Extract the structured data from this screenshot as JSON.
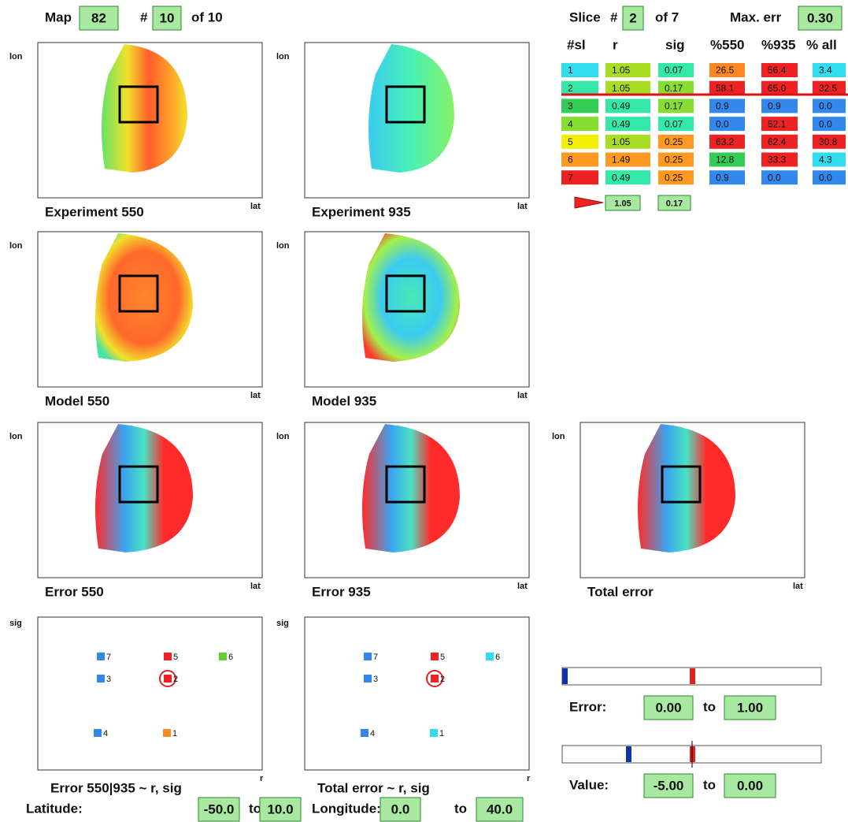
{
  "header": {
    "map_label": "Map",
    "map_value": "82",
    "index_label": "#",
    "index_value": "10",
    "of_label": "of 10"
  },
  "slice": {
    "label": "Slice",
    "hash": "#",
    "value": "2",
    "of_label": "of 7",
    "maxerr_label": "Max. err",
    "maxerr_value": "0.30"
  },
  "table": {
    "headers": [
      "#sl",
      "r",
      "sig",
      "%550",
      "%935",
      "% all"
    ],
    "rows": [
      [
        "1",
        "1.05",
        "0.07",
        "26.5",
        "56.4",
        "3.4"
      ],
      [
        "2",
        "1.05",
        "0.17",
        "58.1",
        "65.0",
        "32.5"
      ],
      [
        "3",
        "0.49",
        "0.17",
        "0.9",
        "0.9",
        "0.0"
      ],
      [
        "4",
        "0.49",
        "0.07",
        "0.0",
        "52.1",
        "0.0"
      ],
      [
        "5",
        "1.05",
        "0.25",
        "63.2",
        "62.4",
        "30.8"
      ],
      [
        "6",
        "1.49",
        "0.25",
        "12.8",
        "33.3",
        "4.3"
      ],
      [
        "7",
        "0.49",
        "0.25",
        "0.9",
        "0.0",
        "0.0"
      ]
    ]
  },
  "selected": [
    "1.05",
    "0.17"
  ],
  "maps": [
    {
      "title": "Experiment 550",
      "y_label": "lon",
      "x_label": "lat"
    },
    {
      "title": "Experiment 935",
      "y_label": "lon",
      "x_label": "lat"
    },
    {
      "title": "Model 550",
      "y_label": "lon",
      "x_label": "lat"
    },
    {
      "title": "Model 935",
      "y_label": "lon",
      "x_label": "lat"
    },
    {
      "title": "Error 550",
      "y_label": "lon",
      "x_label": "lat"
    },
    {
      "title": "Error 935",
      "y_label": "lon",
      "x_label": "lat"
    },
    {
      "title": "Total error",
      "y_label": "lon",
      "x_label": "lat"
    }
  ],
  "scatters": [
    {
      "title": "Error 550|935 ~ r, sig",
      "y_label": "sig",
      "x_label": "r",
      "points": [
        "7",
        "5",
        "6",
        "3",
        "2",
        "4",
        "1"
      ]
    },
    {
      "title": "Total error ~ r, sig",
      "y_label": "sig",
      "x_label": "r",
      "points": [
        "7",
        "5",
        "6",
        "3",
        "2",
        "4",
        "1"
      ]
    }
  ],
  "ranges": [
    {
      "label": "Error:",
      "from": "0.00",
      "to_label": "to",
      "to": "1.00"
    },
    {
      "label": "Value:",
      "from": "-5.00",
      "to_label": "to",
      "to": "0.00"
    },
    {
      "label": "Latitude:",
      "from": "-50.0",
      "to_label": "to",
      "to": "10.0"
    },
    {
      "label": "Longitude:",
      "from": "0.0",
      "to_label": "to",
      "to": "40.0"
    }
  ]
}
